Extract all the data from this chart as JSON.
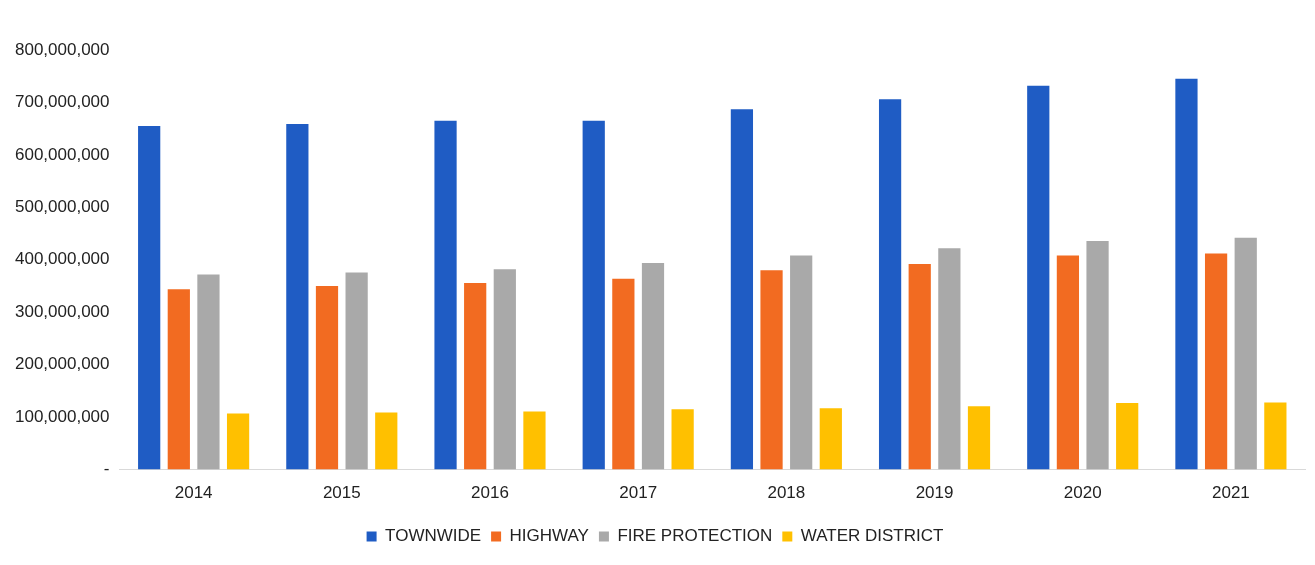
{
  "chart_data": {
    "type": "bar",
    "categories": [
      "2014",
      "2015",
      "2016",
      "2017",
      "2018",
      "2019",
      "2020",
      "2021"
    ],
    "series": [
      {
        "name": "TOWNWIDE",
        "color": "#1f5cc4",
        "values": [
          655000000,
          659000000,
          665000000,
          665000000,
          687000000,
          706000000,
          732000000,
          745000000
        ]
      },
      {
        "name": "HIGHWAY",
        "color": "#f26b21",
        "values": [
          344000000,
          350000000,
          356000000,
          364000000,
          380000000,
          392000000,
          408000000,
          412000000
        ]
      },
      {
        "name": "FIRE PROTECTION",
        "color": "#a9a9a9",
        "values": [
          372000000,
          376000000,
          382000000,
          394000000,
          408000000,
          422000000,
          436000000,
          442000000
        ]
      },
      {
        "name": "WATER DISTRICT",
        "color": "#ffc000",
        "values": [
          107000000,
          109000000,
          111000000,
          115000000,
          117000000,
          121000000,
          127000000,
          128000000
        ]
      }
    ],
    "ylim": [
      0,
      800000000
    ],
    "yticks": [
      {
        "value": 0,
        "label": "-"
      },
      {
        "value": 100000000,
        "label": "100,000,000"
      },
      {
        "value": 200000000,
        "label": "200,000,000"
      },
      {
        "value": 300000000,
        "label": "300,000,000"
      },
      {
        "value": 400000000,
        "label": "400,000,000"
      },
      {
        "value": 500000000,
        "label": "500,000,000"
      },
      {
        "value": 600000000,
        "label": "600,000,000"
      },
      {
        "value": 700000000,
        "label": "700,000,000"
      },
      {
        "value": 800000000,
        "label": "800,000,000"
      }
    ],
    "grid": false,
    "legend": "bottom"
  }
}
